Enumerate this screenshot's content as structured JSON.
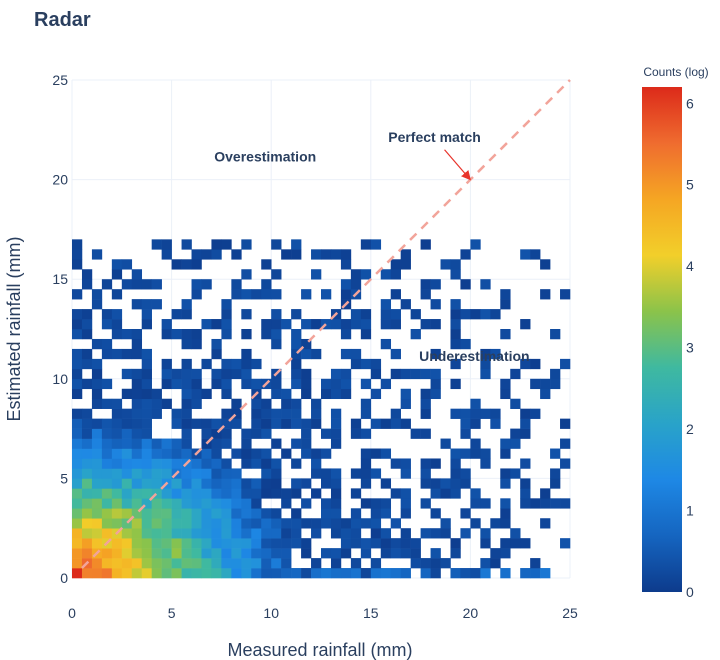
{
  "chart_data": {
    "type": "heatmap",
    "title": "Radar",
    "xlabel": "Measured rainfall (mm)",
    "ylabel": "Estimated rainfall (mm)",
    "xlim": [
      0,
      25
    ],
    "ylim": [
      0,
      25
    ],
    "x_ticks": [
      "0",
      "5",
      "10",
      "15",
      "20",
      "25"
    ],
    "y_ticks": [
      "0",
      "5",
      "10",
      "15",
      "20",
      "25"
    ],
    "bin_size": 0.5,
    "grid": true,
    "colorbar": {
      "title": "Counts (log)",
      "range": [
        0,
        6.2
      ],
      "ticks": [
        "0",
        "1",
        "2",
        "3",
        "4",
        "5",
        "6"
      ],
      "colorscale": [
        "#0d3b8c",
        "#1565c0",
        "#1e88e5",
        "#29a3c9",
        "#3fb9a0",
        "#8bc34a",
        "#f2cf2a",
        "#f5a623",
        "#ef6c2f",
        "#dc2a1a"
      ]
    },
    "reference_line": {
      "from": [
        0.5,
        0.5
      ],
      "to": [
        25,
        25
      ],
      "color": "#f2a49a",
      "style": "dashed"
    },
    "annotations": [
      {
        "text": "Perfect match",
        "x": 18.2,
        "y": 21.9,
        "arrow_to": [
          20,
          20
        ]
      },
      {
        "text": "Overestimation",
        "x": 9.7,
        "y": 20.9
      },
      {
        "text": "Underestimation",
        "x": 20.2,
        "y": 10.9
      }
    ],
    "density_model": "log-count decays with distance from the origin and is elongated along the horizontal axis; sparse isolated cells appear far from the origin"
  }
}
